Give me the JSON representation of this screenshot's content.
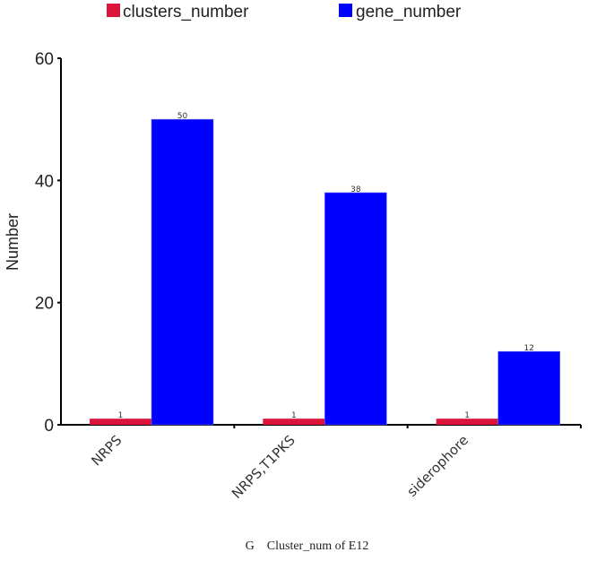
{
  "chart_data": {
    "type": "bar",
    "title": "",
    "xlabel": "",
    "ylabel": "Number",
    "ylim": [
      0,
      60
    ],
    "yticks": [
      0,
      20,
      40,
      60
    ],
    "grid": false,
    "legend_position": "top",
    "categories": [
      "NRPS",
      "NRPS,T1PKS",
      "siderophore"
    ],
    "series": [
      {
        "name": "clusters_number",
        "color": "#dc143c",
        "values": [
          1,
          1,
          1
        ]
      },
      {
        "name": "gene_number",
        "color": "#0000ff",
        "values": [
          50,
          38,
          12
        ]
      }
    ],
    "data_labels": true
  },
  "legend": {
    "items": [
      {
        "label": "clusters_number",
        "color": "#dc143c"
      },
      {
        "label": "gene_number",
        "color": "#0000ff"
      }
    ]
  },
  "axis": {
    "ylabel": "Number",
    "yticks": [
      "0",
      "20",
      "40",
      "60"
    ]
  },
  "caption": "G    Cluster_num of E12"
}
